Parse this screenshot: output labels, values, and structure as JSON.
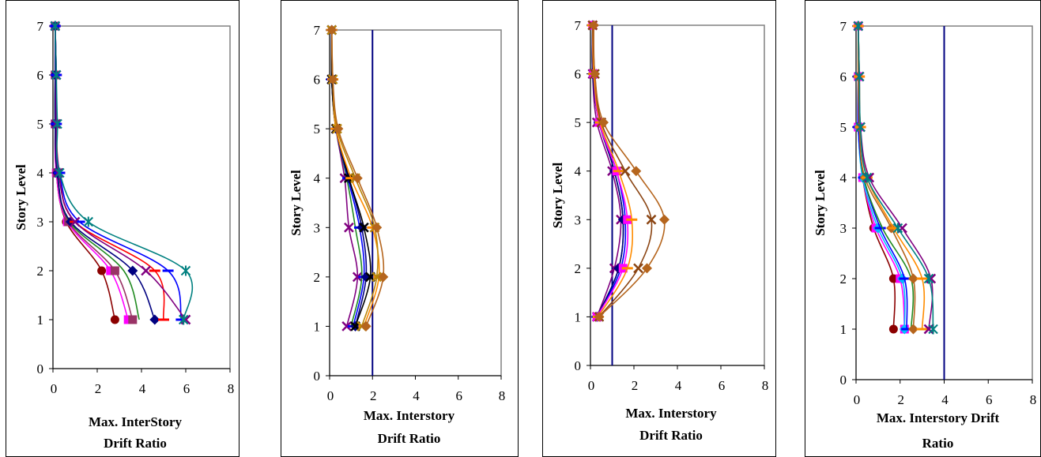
{
  "chart_data": [
    {
      "type": "line",
      "xlabel_lines": [
        "Max. InterStory",
        "Drift Ratio"
      ],
      "ylabel": "Story Level",
      "xlim": [
        0,
        8
      ],
      "ylim": [
        0,
        7
      ],
      "xticks": [
        0,
        2,
        4,
        6,
        8
      ],
      "yticks": [
        0,
        1,
        2,
        3,
        4,
        5,
        6,
        7
      ],
      "limit_line": null,
      "series": [
        {
          "color": "#8b0000",
          "marker": "circle",
          "x": [
            2.8,
            2.2,
            0.6,
            0.15,
            0.1,
            0.1,
            0.1
          ]
        },
        {
          "color": "#ff00ff",
          "marker": "square",
          "x": [
            3.4,
            2.6,
            0.65,
            0.15,
            0.1,
            0.1,
            0.1
          ]
        },
        {
          "color": "#993366",
          "marker": "square",
          "x": [
            3.6,
            2.8,
            0.7,
            0.18,
            0.1,
            0.1,
            0.1
          ]
        },
        {
          "color": "#228b22",
          "marker": "none",
          "x": [
            3.9,
            3.2,
            0.75,
            0.2,
            0.1,
            0.1,
            0.1
          ]
        },
        {
          "color": "#000080",
          "marker": "diamond",
          "x": [
            4.6,
            3.6,
            0.8,
            0.2,
            0.1,
            0.1,
            0.1
          ]
        },
        {
          "color": "#ff0000",
          "marker": "dash",
          "x": [
            5.0,
            4.6,
            1.0,
            0.3,
            0.15,
            0.15,
            0.1
          ]
        },
        {
          "color": "#0000ff",
          "marker": "dash",
          "x": [
            5.8,
            5.2,
            1.2,
            0.3,
            0.15,
            0.15,
            0.1
          ]
        },
        {
          "color": "#800080",
          "marker": "x",
          "x": [
            6.0,
            4.2,
            1.0,
            0.25,
            0.15,
            0.15,
            0.1
          ]
        },
        {
          "color": "#008080",
          "marker": "star",
          "x": [
            5.9,
            6.0,
            1.6,
            0.3,
            0.2,
            0.15,
            0.1
          ]
        }
      ]
    },
    {
      "type": "line",
      "xlabel_lines": [
        "Max. Interstory",
        "Drift Ratio"
      ],
      "ylabel": "Story Level",
      "xlim": [
        0,
        8
      ],
      "ylim": [
        0,
        7
      ],
      "xticks": [
        0,
        2,
        4,
        6,
        8
      ],
      "yticks": [
        0,
        1,
        2,
        3,
        4,
        5,
        6,
        7
      ],
      "limit_line": 2,
      "series": [
        {
          "color": "#800080",
          "marker": "x",
          "x": [
            0.8,
            1.3,
            0.9,
            0.7,
            0.3,
            0.1,
            0.1
          ]
        },
        {
          "color": "#228b22",
          "marker": "none",
          "x": [
            1.0,
            1.5,
            1.2,
            0.8,
            0.3,
            0.1,
            0.1
          ]
        },
        {
          "color": "#0000ff",
          "marker": "dash",
          "x": [
            1.1,
            1.6,
            1.4,
            0.85,
            0.3,
            0.1,
            0.1
          ]
        },
        {
          "color": "#000080",
          "marker": "diamond",
          "x": [
            1.2,
            1.7,
            1.5,
            0.9,
            0.3,
            0.1,
            0.1
          ]
        },
        {
          "color": "#000000",
          "marker": "x",
          "x": [
            1.2,
            1.9,
            1.6,
            0.9,
            0.3,
            0.1,
            0.1
          ]
        },
        {
          "color": "#ff8c00",
          "marker": "dash",
          "x": [
            1.6,
            2.3,
            2.0,
            1.0,
            0.3,
            0.15,
            0.1
          ]
        },
        {
          "color": "#b8860b",
          "marker": "x",
          "x": [
            1.5,
            2.2,
            2.1,
            1.2,
            0.35,
            0.15,
            0.1
          ]
        },
        {
          "color": "#b5651d",
          "marker": "diamond",
          "x": [
            1.7,
            2.5,
            2.2,
            1.3,
            0.4,
            0.15,
            0.1
          ]
        }
      ]
    },
    {
      "type": "line",
      "xlabel_lines": [
        "Max. Interstory",
        "Drift Ratio"
      ],
      "ylabel": "Story Level",
      "xlim": [
        0,
        8
      ],
      "ylim": [
        0,
        7
      ],
      "xticks": [
        0,
        2,
        4,
        6,
        8
      ],
      "yticks": [
        0,
        1,
        2,
        3,
        4,
        5,
        6,
        7
      ],
      "limit_line": 1,
      "series": [
        {
          "color": "#800080",
          "marker": "x",
          "x": [
            0.3,
            1.1,
            1.4,
            1.0,
            0.3,
            0.1,
            0.1
          ]
        },
        {
          "color": "#228b22",
          "marker": "none",
          "x": [
            0.3,
            1.3,
            1.5,
            1.1,
            0.4,
            0.1,
            0.1
          ]
        },
        {
          "color": "#0000ff",
          "marker": "dash",
          "x": [
            0.3,
            1.4,
            1.6,
            1.2,
            0.4,
            0.15,
            0.1
          ]
        },
        {
          "color": "#000080",
          "marker": "diamond",
          "x": [
            0.3,
            1.3,
            1.5,
            1.1,
            0.4,
            0.1,
            0.1
          ]
        },
        {
          "color": "#ff00ff",
          "marker": "square",
          "x": [
            0.3,
            1.5,
            1.7,
            1.2,
            0.4,
            0.15,
            0.1
          ]
        },
        {
          "color": "#ff8c00",
          "marker": "dash",
          "x": [
            0.35,
            1.7,
            1.9,
            1.3,
            0.45,
            0.15,
            0.1
          ]
        },
        {
          "color": "#8b4513",
          "marker": "x",
          "x": [
            0.4,
            2.2,
            2.8,
            1.6,
            0.5,
            0.2,
            0.1
          ]
        },
        {
          "color": "#b5651d",
          "marker": "diamond",
          "x": [
            0.4,
            2.6,
            3.4,
            2.1,
            0.6,
            0.2,
            0.15
          ]
        }
      ]
    },
    {
      "type": "line",
      "xlabel_lines": [
        "Max. Interstory Drift",
        "Ratio"
      ],
      "ylabel": "Story Level",
      "xlim": [
        0,
        8
      ],
      "ylim": [
        0,
        7
      ],
      "xticks": [
        0,
        2,
        4,
        6,
        8
      ],
      "yticks": [
        0,
        1,
        2,
        3,
        4,
        5,
        6,
        7
      ],
      "limit_line": 4,
      "series": [
        {
          "color": "#8b0000",
          "marker": "circle",
          "x": [
            1.7,
            1.7,
            0.8,
            0.3,
            0.1,
            0.1,
            0.1
          ]
        },
        {
          "color": "#ff00ff",
          "marker": "square",
          "x": [
            2.2,
            2.0,
            0.9,
            0.3,
            0.1,
            0.1,
            0.1
          ]
        },
        {
          "color": "#00bfff",
          "marker": "diamond",
          "x": [
            2.2,
            2.1,
            1.0,
            0.3,
            0.1,
            0.1,
            0.1
          ]
        },
        {
          "color": "#0000ff",
          "marker": "dash",
          "x": [
            2.3,
            2.2,
            1.1,
            0.35,
            0.1,
            0.1,
            0.1
          ]
        },
        {
          "color": "#228b22",
          "marker": "none",
          "x": [
            2.5,
            2.5,
            1.2,
            0.35,
            0.15,
            0.1,
            0.1
          ]
        },
        {
          "color": "#b5651d",
          "marker": "diamond",
          "x": [
            2.6,
            2.6,
            1.6,
            0.4,
            0.15,
            0.1,
            0.1
          ]
        },
        {
          "color": "#ff8c00",
          "marker": "dash",
          "x": [
            3.0,
            3.0,
            1.7,
            0.5,
            0.2,
            0.15,
            0.1
          ]
        },
        {
          "color": "#800080",
          "marker": "x",
          "x": [
            3.3,
            3.4,
            2.1,
            0.6,
            0.2,
            0.15,
            0.1
          ]
        },
        {
          "color": "#008080",
          "marker": "star",
          "x": [
            3.5,
            3.3,
            1.9,
            0.5,
            0.2,
            0.15,
            0.1
          ]
        }
      ]
    }
  ]
}
